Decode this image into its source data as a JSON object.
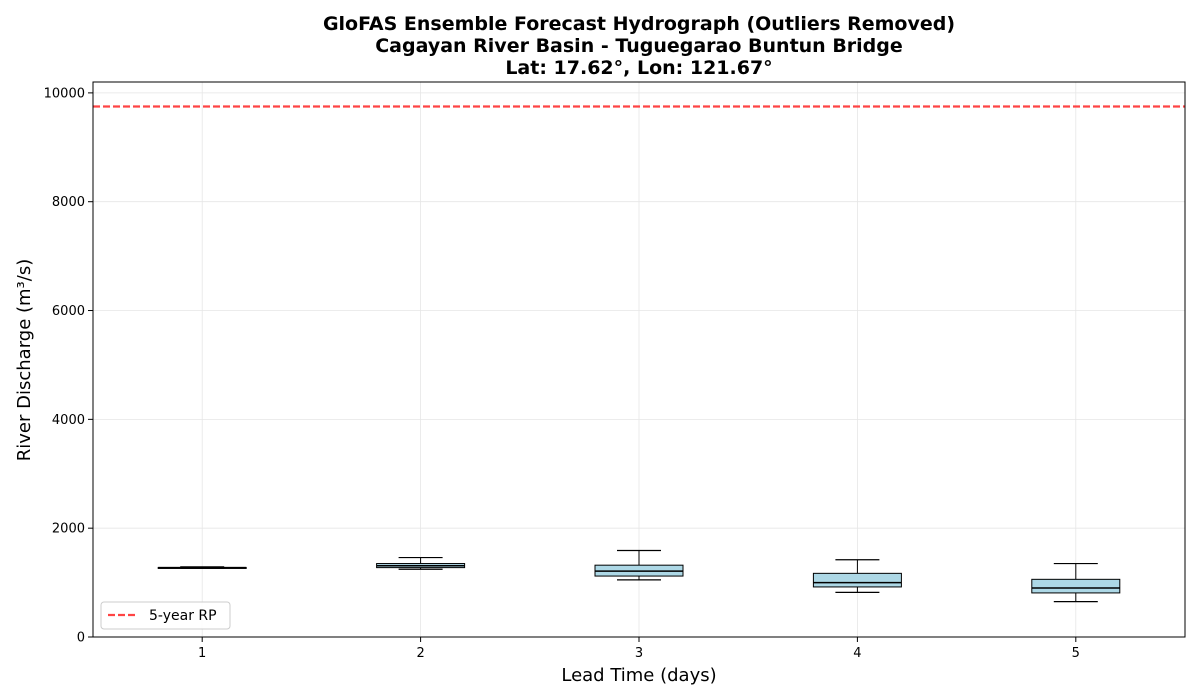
{
  "chart_data": {
    "type": "box",
    "title": [
      "GloFAS Ensemble Forecast Hydrograph (Outliers Removed)",
      "Cagayan River Basin - Tuguegarao Buntun Bridge",
      "Lat: 17.62°, Lon: 121.67°"
    ],
    "xlabel": "Lead Time (days)",
    "ylabel": "River Discharge (m³/s)",
    "xlim": [
      0.5,
      5.5
    ],
    "ylim": [
      0,
      10200
    ],
    "x_ticks": [
      1,
      2,
      3,
      4,
      5
    ],
    "y_ticks": [
      0,
      2000,
      4000,
      6000,
      8000,
      10000
    ],
    "grid": true,
    "boxes": [
      {
        "x": 1,
        "whisker_low": 1265,
        "q1": 1272,
        "median": 1275,
        "q3": 1278,
        "whisker_high": 1290
      },
      {
        "x": 2,
        "whisker_low": 1245,
        "q1": 1275,
        "median": 1310,
        "q3": 1350,
        "whisker_high": 1460
      },
      {
        "x": 3,
        "whisker_low": 1050,
        "q1": 1120,
        "median": 1210,
        "q3": 1320,
        "whisker_high": 1590
      },
      {
        "x": 4,
        "whisker_low": 820,
        "q1": 920,
        "median": 1000,
        "q3": 1170,
        "whisker_high": 1420
      },
      {
        "x": 5,
        "whisker_low": 650,
        "q1": 810,
        "median": 900,
        "q3": 1060,
        "whisker_high": 1350
      }
    ],
    "reference_line": {
      "name": "5-year RP",
      "y": 9750,
      "color": "#ff4444",
      "style": "dashed"
    },
    "legend": {
      "entries": [
        "5-year RP"
      ],
      "placement": "lower-left"
    },
    "colors": {
      "box_fill": "#add8e6",
      "box_edge": "#000000",
      "median": "#000000",
      "grid": "#e6e6e6"
    }
  }
}
